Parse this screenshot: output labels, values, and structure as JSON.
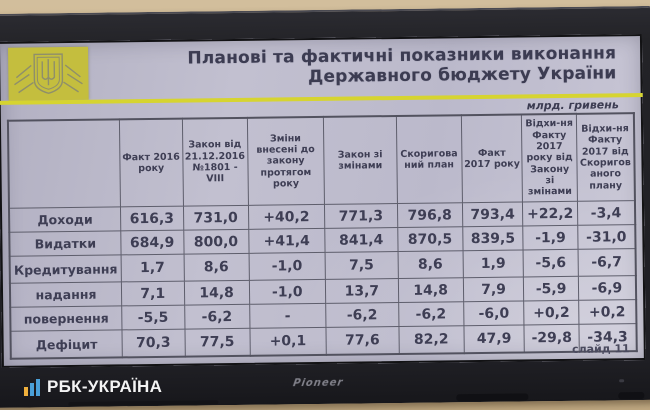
{
  "photo": {
    "watermark": {
      "brand": "РБК-УКРАЇНА",
      "icon": "rbc-bars-logo"
    },
    "tv_brand": "Pioneer"
  },
  "slide": {
    "title_line1": "Планові та фактичні показники виконання",
    "title_line2": "Державного бюджету України",
    "units": "млрд. гривень",
    "slide_number": "слайд 11",
    "emblem": "ukraine-trident-emblem",
    "colors": {
      "accent_yellow": "#d6d430",
      "emblem_yellow": "#c4be3e",
      "screen_background": "#bfbdce",
      "text": "#3c3c52",
      "bezel": "#232327",
      "wall": "#c9b28c",
      "watermark_blue": "#4aa0d8",
      "watermark_yellow": "#f0b03c"
    }
  },
  "chart_data": {
    "type": "table",
    "title": "Планові та фактичні показники виконання Державного бюджету України",
    "units": "млрд. гривень",
    "columns": [
      "",
      "Факт 2016 року",
      "Закон від 21.12.2016 №1801 - VIII",
      "Зміни внесені до закону протягом року",
      "Закон зі змінами",
      "Скоригований план",
      "Факт 2017 року",
      "Відхи-ня Факту 2017 року від Закону зі змінами",
      "Відхи-ня Факту 2017 від Скоригованого плану"
    ],
    "rows": [
      {
        "label": "Доходи",
        "values": [
          "616,3",
          "731,0",
          "+40,2",
          "771,3",
          "796,8",
          "793,4",
          "+22,2",
          "-3,4"
        ]
      },
      {
        "label": "Видатки",
        "values": [
          "684,9",
          "800,0",
          "+41,4",
          "841,4",
          "870,5",
          "839,5",
          "-1,9",
          "-31,0"
        ]
      },
      {
        "label": "Кредитування",
        "values": [
          "1,7",
          "8,6",
          "-1,0",
          "7,5",
          "8,6",
          "1,9",
          "-5,6",
          "-6,7"
        ]
      },
      {
        "label": "надання",
        "values": [
          "7,1",
          "14,8",
          "-1,0",
          "13,7",
          "14,8",
          "7,9",
          "-5,9",
          "-6,9"
        ]
      },
      {
        "label": "повернення",
        "values": [
          "-5,5",
          "-6,2",
          "-",
          "-6,2",
          "-6,2",
          "-6,0",
          "+0,2",
          "+0,2"
        ]
      },
      {
        "label": "Дефіцит",
        "values": [
          "70,3",
          "77,5",
          "+0,1",
          "77,6",
          "82,2",
          "47,9",
          "-29,8",
          "-34,3"
        ]
      }
    ],
    "footer": "слайд 11"
  }
}
